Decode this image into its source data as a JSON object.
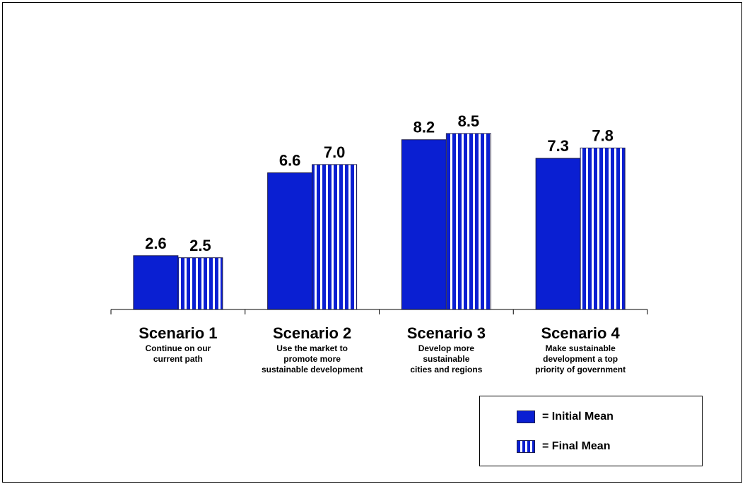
{
  "chart_data": {
    "type": "bar",
    "categories": [
      "Scenario 1",
      "Scenario 2",
      "Scenario 3",
      "Scenario 4"
    ],
    "category_descriptions": [
      "Continue on our\ncurrent path",
      "Use the market to\npromote more\nsustainable development",
      "Develop more\nsustainable\ncities and regions",
      "Make sustainable\ndevelopment a top\npriority of government"
    ],
    "series": [
      {
        "name": "Initial Mean",
        "values": [
          2.6,
          6.6,
          8.2,
          7.3
        ],
        "value_labels": [
          "2.6",
          "6.6",
          "8.2",
          "7.3"
        ],
        "color": "#0a1fd2",
        "pattern": "solid"
      },
      {
        "name": "Final Mean",
        "values": [
          2.5,
          7.0,
          8.5,
          7.8
        ],
        "value_labels": [
          "2.5",
          "7.0",
          "8.5",
          "7.8"
        ],
        "color": "#0a1fd2",
        "pattern": "vertical-stripes"
      }
    ],
    "ylim": [
      0,
      10
    ],
    "grid": false,
    "legend_position": "bottom-right",
    "legend_labels": [
      "= Initial Mean",
      "= Final Mean"
    ]
  }
}
